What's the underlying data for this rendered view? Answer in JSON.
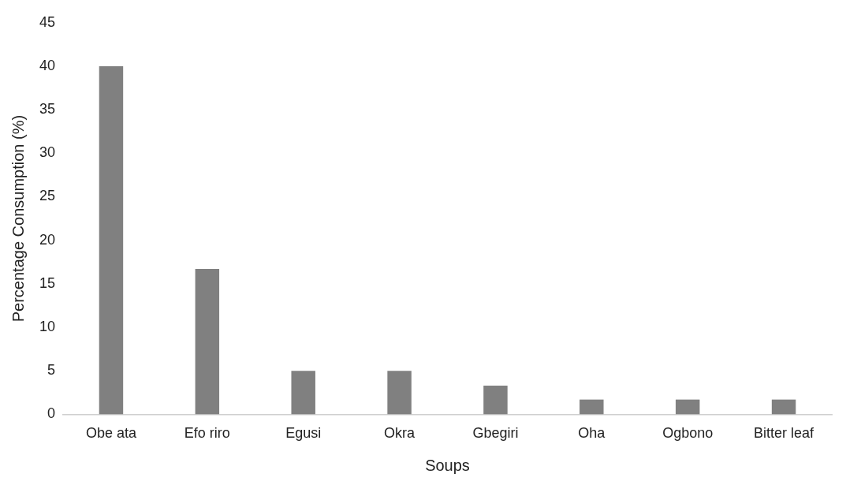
{
  "chart_data": {
    "type": "bar",
    "xlabel": "Soups",
    "ylabel": "Percentage Consumption (%)",
    "categories": [
      "Obe ata",
      "Efo riro",
      "Egusi",
      "Okra",
      "Gbegiri",
      "Oha",
      "Ogbono",
      "Bitter leaf"
    ],
    "values": [
      40,
      16.7,
      5,
      5,
      3.3,
      1.7,
      1.7,
      1.7
    ],
    "color": "#808080",
    "ylim": [
      0,
      45
    ],
    "yticks": [
      0,
      5,
      10,
      15,
      20,
      25,
      30,
      35,
      40,
      45
    ],
    "grid": false,
    "legend": false
  }
}
